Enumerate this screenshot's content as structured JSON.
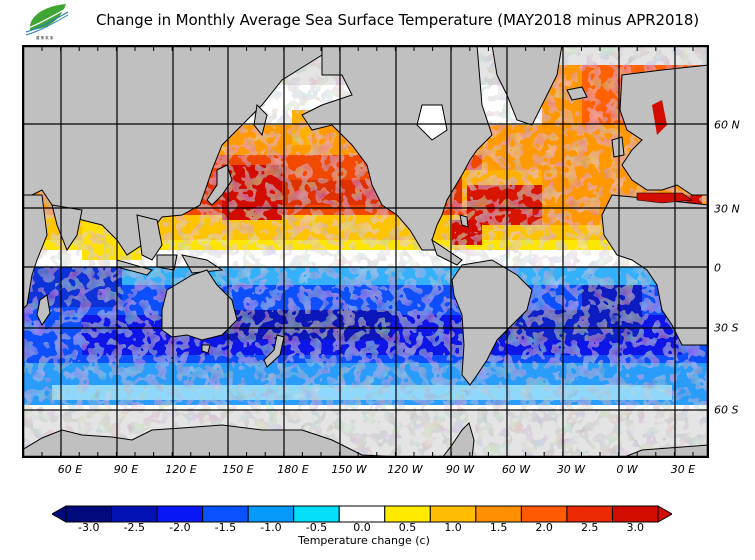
{
  "title": "Change in Monthly Average Sea Surface Temperature (MAY2018 minus APR2018)",
  "logo": {
    "icon": "leaf-logo-icon",
    "caption": "農 業 氣 象"
  },
  "map": {
    "projection": "equirectangular",
    "lon_labels": [
      "60 E",
      "90 E",
      "120 E",
      "150 E",
      "180 E",
      "150 W",
      "120 W",
      "90 W",
      "60 W",
      "30 W",
      "0 W",
      "30 E"
    ],
    "lat_labels": [
      "60 N",
      "30 N",
      "0",
      "30 S",
      "60 S"
    ],
    "land_color": "#c0c0c0",
    "ice_color": "#e4e4e4",
    "coast_color": "#000000"
  },
  "colorbar": {
    "title": "Temperature change  (c)",
    "labels": [
      "-3.0",
      "-2.5",
      "-2.0",
      "-1.5",
      "-1.0",
      "-0.5",
      "0.0",
      "0.5",
      "1.0",
      "1.5",
      "2.0",
      "2.5",
      "3.0"
    ],
    "colors": [
      "#000a7c",
      "#0312b4",
      "#0717f5",
      "#0a52fd",
      "#0799fa",
      "#05def9",
      "#ffffff",
      "#ffea00",
      "#ffbd00",
      "#ff8f00",
      "#ff5a00",
      "#ec2a02",
      "#d20d00"
    ],
    "under_color": "#000a7c",
    "over_color": "#d20d00"
  }
}
